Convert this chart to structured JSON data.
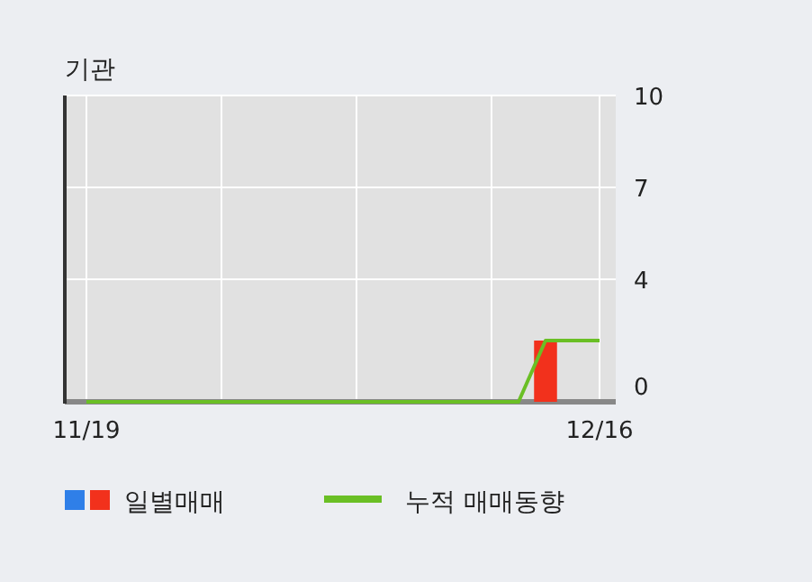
{
  "chart_data": {
    "type": "bar",
    "title": "기관",
    "categories": [
      "11/19",
      null,
      null,
      null,
      null,
      null,
      null,
      null,
      null,
      null,
      null,
      null,
      null,
      null,
      null,
      null,
      null,
      null,
      null,
      "12/16"
    ],
    "series": [
      {
        "name": "일별매매",
        "color": "#f2311c",
        "values": [
          0,
          0,
          0,
          0,
          0,
          0,
          0,
          0,
          0,
          0,
          0,
          0,
          0,
          0,
          0,
          0,
          0,
          2,
          0,
          0
        ]
      },
      {
        "name": "누적 매매동향",
        "type": "line",
        "color": "#6abf25",
        "values": [
          0,
          0,
          0,
          0,
          0,
          0,
          0,
          0,
          0,
          0,
          0,
          0,
          0,
          0,
          0,
          0,
          0,
          2,
          2,
          2
        ]
      }
    ],
    "ylim": [
      0,
      10
    ],
    "yticks": [
      10,
      7,
      4,
      0
    ],
    "grid": true,
    "legend": "bottom"
  }
}
